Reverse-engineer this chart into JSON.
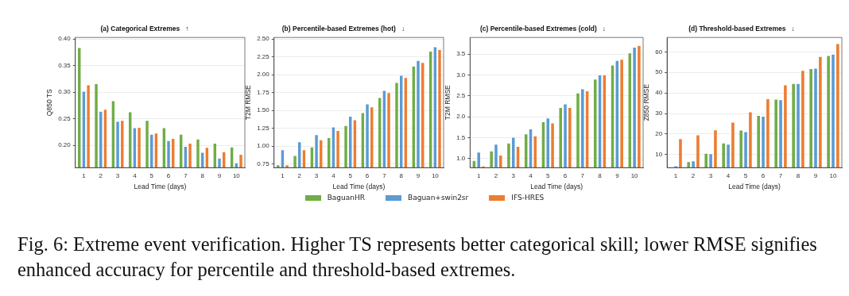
{
  "chart_data": [
    {
      "type": "bar",
      "title": "(a) Categorical Extremes   ↑",
      "xlabel": "Lead Time (days)",
      "ylabel": "Q850 TS",
      "categories": [
        "1",
        "2",
        "3",
        "4",
        "5",
        "6",
        "7",
        "8",
        "9",
        "10"
      ],
      "series": [
        {
          "name": "BaguanHR",
          "color": "#70ad47",
          "values": [
            0.384,
            0.316,
            0.284,
            0.263,
            0.247,
            0.233,
            0.221,
            0.212,
            0.204,
            0.197
          ]
        },
        {
          "name": "Baguan+swin2sr",
          "color": "#5b9bd5",
          "values": [
            0.302,
            0.264,
            0.245,
            0.233,
            0.221,
            0.209,
            0.198,
            0.187,
            0.176,
            0.167
          ]
        },
        {
          "name": "IFS-HRES",
          "color": "#ed7d31",
          "values": [
            0.314,
            0.268,
            0.247,
            0.234,
            0.223,
            0.213,
            0.204,
            0.196,
            0.188,
            0.183
          ]
        }
      ],
      "ylim": [
        0.158,
        0.403
      ],
      "yticks": [
        {
          "value": 0.2,
          "label": "0.20"
        },
        {
          "value": 0.25,
          "label": "0.25"
        },
        {
          "value": 0.3,
          "label": "0.30"
        },
        {
          "value": 0.35,
          "label": "0.35"
        },
        {
          "value": 0.4,
          "label": "0.40"
        }
      ],
      "grid": "y",
      "legend": "bottom",
      "annotations": [
        "Fig. 6: Extreme event verification. Higher TS represents better categorical skill; lower RMSE signifies enhanced accuracy for percentile and threshold-based extremes."
      ]
    },
    {
      "type": "bar",
      "title": "(b) Percentile-based Extremes (hot)   ↓",
      "xlabel": "Lead Time (days)",
      "ylabel": "T2M RMSE",
      "categories": [
        "1",
        "2",
        "3",
        "4",
        "5",
        "6",
        "7",
        "8",
        "9",
        "10"
      ],
      "series": [
        {
          "color": "#70ad47",
          "values": [
            0.74,
            0.87,
            0.99,
            1.12,
            1.29,
            1.47,
            1.68,
            1.89,
            2.12,
            2.33
          ]
        },
        {
          "color": "#5b9bd5",
          "values": [
            0.95,
            1.06,
            1.16,
            1.27,
            1.42,
            1.59,
            1.78,
            1.99,
            2.2,
            2.39
          ]
        },
        {
          "color": "#ed7d31",
          "values": [
            0.74,
            0.95,
            1.09,
            1.22,
            1.37,
            1.55,
            1.75,
            1.96,
            2.17,
            2.35
          ]
        }
      ],
      "ylim": [
        0.7,
        2.52
      ],
      "yticks": [
        {
          "value": 0.75,
          "label": "0.75"
        },
        {
          "value": 1,
          "label": "1.00"
        },
        {
          "value": 1.25,
          "label": "1.25"
        },
        {
          "value": 1.5,
          "label": "1.50"
        },
        {
          "value": 1.75,
          "label": "1.75"
        },
        {
          "value": 2,
          "label": "2.00"
        },
        {
          "value": 2.25,
          "label": "2.25"
        },
        {
          "value": 2.5,
          "label": "2.50"
        }
      ],
      "grid": "y"
    },
    {
      "type": "bar",
      "title": "(c) Percentile-based Extremes (cold)   ↓",
      "xlabel": "Lead Time (days)",
      "ylabel": "T2M RMSE",
      "categories": [
        "1",
        "2",
        "3",
        "4",
        "5",
        "6",
        "7",
        "8",
        "9",
        "10"
      ],
      "series": [
        {
          "color": "#70ad47",
          "values": [
            0.95,
            1.18,
            1.37,
            1.59,
            1.88,
            2.22,
            2.57,
            2.9,
            3.24,
            3.53
          ]
        },
        {
          "color": "#5b9bd5",
          "values": [
            1.15,
            1.34,
            1.51,
            1.71,
            1.97,
            2.31,
            2.67,
            3.0,
            3.35,
            3.67
          ]
        },
        {
          "color": "#ed7d31",
          "values": [
            0.82,
            1.08,
            1.29,
            1.54,
            1.85,
            2.22,
            2.62,
            3.0,
            3.38,
            3.71
          ]
        }
      ],
      "ylim": [
        0.78,
        3.9
      ],
      "yticks": [
        {
          "value": 1,
          "label": "1.0"
        },
        {
          "value": 1.5,
          "label": "1.5"
        },
        {
          "value": 2,
          "label": "2.0"
        },
        {
          "value": 2.5,
          "label": "2.5"
        },
        {
          "value": 3,
          "label": "3.0"
        },
        {
          "value": 3.5,
          "label": "3.5"
        }
      ],
      "grid": "y"
    },
    {
      "type": "bar",
      "title": "(d) Threshold-based Extremes   ↓",
      "xlabel": "Lead Time (days)",
      "ylabel": "Z850 RMSE",
      "categories": [
        "1",
        "2",
        "3",
        "4",
        "5",
        "6",
        "7",
        "8",
        "9",
        "10"
      ],
      "series": [
        {
          "color": "#70ad47",
          "values": [
            4.0,
            6.6,
            10.7,
            15.7,
            22.0,
            29.1,
            37.0,
            44.6,
            51.9,
            58.2
          ]
        },
        {
          "color": "#5b9bd5",
          "values": [
            4.6,
            7.0,
            10.5,
            15.1,
            21.2,
            28.7,
            36.7,
            44.6,
            52.1,
            58.9
          ]
        },
        {
          "color": "#ed7d31",
          "values": [
            17.8,
            19.6,
            22.1,
            25.8,
            30.8,
            37.2,
            44.0,
            51.0,
            57.8,
            64.0
          ]
        }
      ],
      "ylim": [
        3.7,
        67
      ],
      "yticks": [
        10,
        20,
        30,
        40,
        50,
        60
      ],
      "grid": "y"
    }
  ]
}
